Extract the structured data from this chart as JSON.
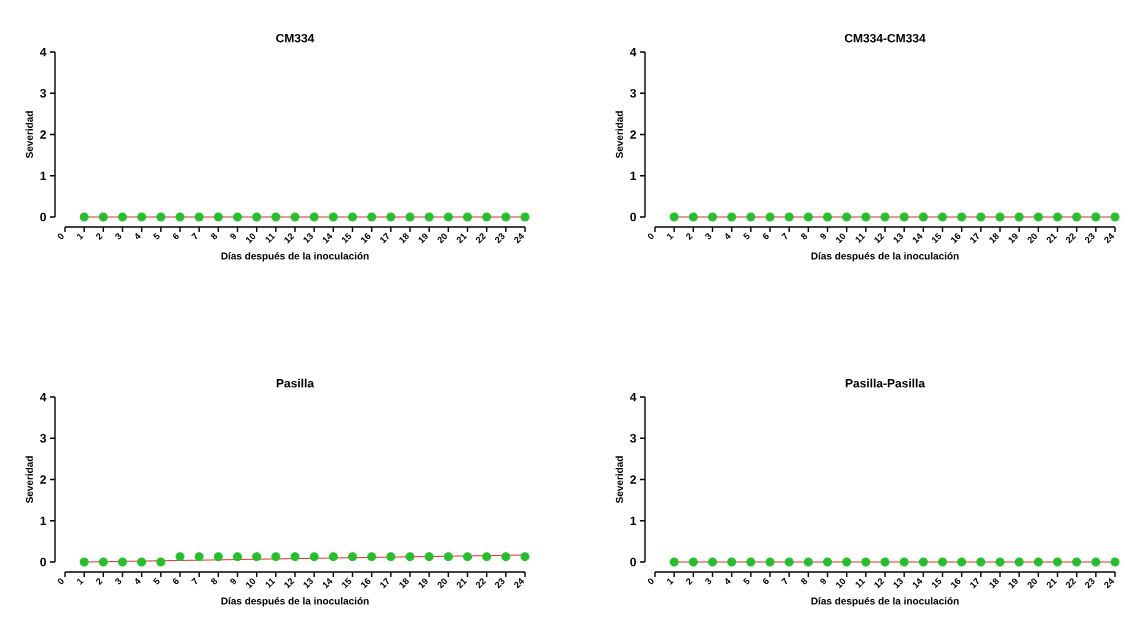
{
  "chart_data": [
    {
      "type": "scatter",
      "title": "CM334",
      "xlabel": "Días después de la inoculación",
      "ylabel": "Severidad",
      "xlim": [
        0,
        24
      ],
      "ylim": [
        0,
        4
      ],
      "xticks": [
        0,
        1,
        2,
        3,
        4,
        5,
        6,
        7,
        8,
        9,
        10,
        11,
        12,
        13,
        14,
        15,
        16,
        17,
        18,
        19,
        20,
        21,
        22,
        23,
        24
      ],
      "yticks": [
        0,
        1,
        2,
        3,
        4
      ],
      "series": [
        {
          "type": "scatter",
          "marker": "circle",
          "color": "#22c02a",
          "x": [
            1,
            2,
            3,
            4,
            5,
            6,
            7,
            8,
            9,
            10,
            11,
            12,
            13,
            14,
            15,
            16,
            17,
            18,
            19,
            20,
            21,
            22,
            23,
            24
          ],
          "values": [
            0,
            0,
            0,
            0,
            0,
            0,
            0,
            0,
            0,
            0,
            0,
            0,
            0,
            0,
            0,
            0,
            0,
            0,
            0,
            0,
            0,
            0,
            0,
            0
          ]
        },
        {
          "type": "line",
          "color": "#e03030",
          "x": [
            1,
            24
          ],
          "values": [
            0,
            0
          ]
        }
      ]
    },
    {
      "type": "scatter",
      "title": "CM334-CM334",
      "xlabel": "Días después de la inoculación",
      "ylabel": "Severidad",
      "xlim": [
        0,
        24
      ],
      "ylim": [
        0,
        4
      ],
      "xticks": [
        0,
        1,
        2,
        3,
        4,
        5,
        6,
        7,
        8,
        9,
        10,
        11,
        12,
        13,
        14,
        15,
        16,
        17,
        18,
        19,
        20,
        21,
        22,
        23,
        24
      ],
      "yticks": [
        0,
        1,
        2,
        3,
        4
      ],
      "series": [
        {
          "type": "scatter",
          "marker": "circle",
          "color": "#22c02a",
          "x": [
            1,
            2,
            3,
            4,
            5,
            6,
            7,
            8,
            9,
            10,
            11,
            12,
            13,
            14,
            15,
            16,
            17,
            18,
            19,
            20,
            21,
            22,
            23,
            24
          ],
          "values": [
            0,
            0,
            0,
            0,
            0,
            0,
            0,
            0,
            0,
            0,
            0,
            0,
            0,
            0,
            0,
            0,
            0,
            0,
            0,
            0,
            0,
            0,
            0,
            0
          ]
        },
        {
          "type": "line",
          "color": "#e03030",
          "x": [
            1,
            24
          ],
          "values": [
            0,
            0
          ]
        }
      ]
    },
    {
      "type": "scatter",
      "title": "Pasilla",
      "xlabel": "Días después de la inoculación",
      "ylabel": "Severidad",
      "xlim": [
        0,
        24
      ],
      "ylim": [
        0,
        4
      ],
      "xticks": [
        0,
        1,
        2,
        3,
        4,
        5,
        6,
        7,
        8,
        9,
        10,
        11,
        12,
        13,
        14,
        15,
        16,
        17,
        18,
        19,
        20,
        21,
        22,
        23,
        24
      ],
      "yticks": [
        0,
        1,
        2,
        3,
        4
      ],
      "series": [
        {
          "type": "scatter",
          "marker": "circle",
          "color": "#22c02a",
          "x": [
            1,
            2,
            3,
            4,
            5,
            6,
            7,
            8,
            9,
            10,
            11,
            12,
            13,
            14,
            15,
            16,
            17,
            18,
            19,
            20,
            21,
            22,
            23,
            24
          ],
          "values": [
            0,
            0,
            0,
            0,
            0,
            0.13,
            0.13,
            0.13,
            0.13,
            0.13,
            0.13,
            0.13,
            0.13,
            0.13,
            0.13,
            0.13,
            0.13,
            0.13,
            0.13,
            0.13,
            0.13,
            0.13,
            0.13,
            0.13
          ]
        },
        {
          "type": "line",
          "color": "#e03030",
          "x": [
            1,
            24
          ],
          "values": [
            0,
            0.17
          ]
        }
      ]
    },
    {
      "type": "scatter",
      "title": "Pasilla-Pasilla",
      "xlabel": "Días después de la inoculación",
      "ylabel": "Severidad",
      "xlim": [
        0,
        24
      ],
      "ylim": [
        0,
        4
      ],
      "xticks": [
        0,
        1,
        2,
        3,
        4,
        5,
        6,
        7,
        8,
        9,
        10,
        11,
        12,
        13,
        14,
        15,
        16,
        17,
        18,
        19,
        20,
        21,
        22,
        23,
        24
      ],
      "yticks": [
        0,
        1,
        2,
        3,
        4
      ],
      "series": [
        {
          "type": "scatter",
          "marker": "circle",
          "color": "#22c02a",
          "x": [
            1,
            2,
            3,
            4,
            5,
            6,
            7,
            8,
            9,
            10,
            11,
            12,
            13,
            14,
            15,
            16,
            17,
            18,
            19,
            20,
            21,
            22,
            23,
            24
          ],
          "values": [
            0,
            0,
            0,
            0,
            0,
            0,
            0,
            0,
            0,
            0,
            0,
            0,
            0,
            0,
            0,
            0,
            0,
            0,
            0,
            0,
            0,
            0,
            0,
            0
          ]
        },
        {
          "type": "line",
          "color": "#e03030",
          "x": [
            1,
            24
          ],
          "values": [
            0,
            0
          ]
        }
      ]
    }
  ]
}
